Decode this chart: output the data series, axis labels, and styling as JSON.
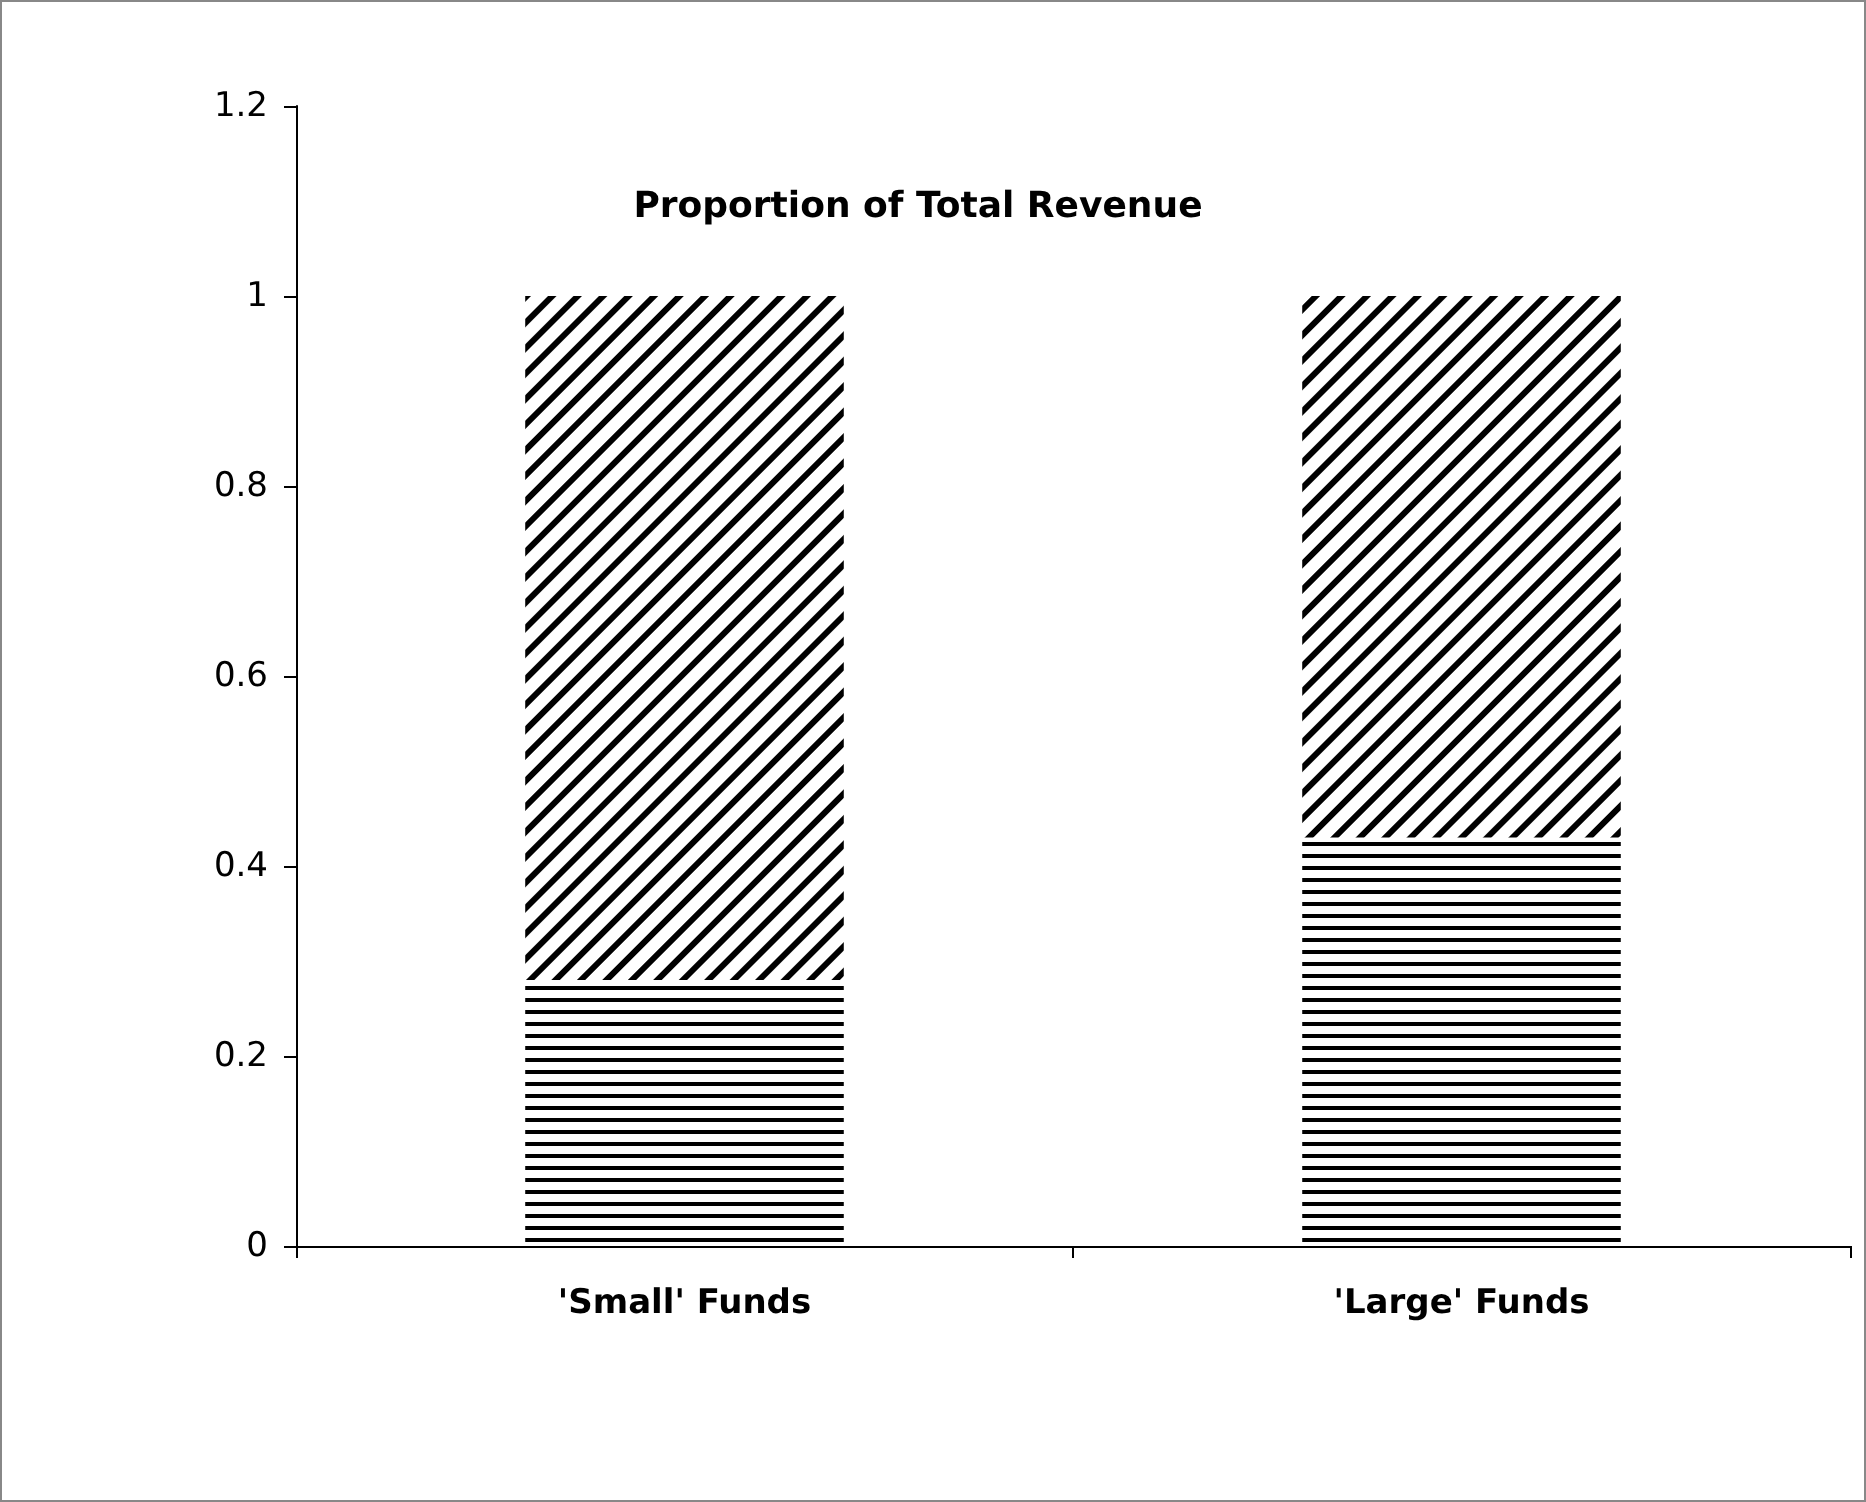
{
  "chart_data": {
    "type": "bar",
    "title": "Proportion of Total Revenue",
    "categories": [
      "'Small' Funds",
      "'Large' Funds"
    ],
    "stacked": true,
    "series": [
      {
        "color": "#000000",
        "values": [
          0.28,
          0.43
        ]
      },
      {
        "color": "#000000",
        "values": [
          0.72,
          0.57
        ]
      }
    ],
    "ylim": [
      0,
      1.2
    ],
    "yticks": [
      0,
      0.2,
      0.4,
      0.6,
      0.8,
      1,
      1.2
    ],
    "grid": false
  }
}
